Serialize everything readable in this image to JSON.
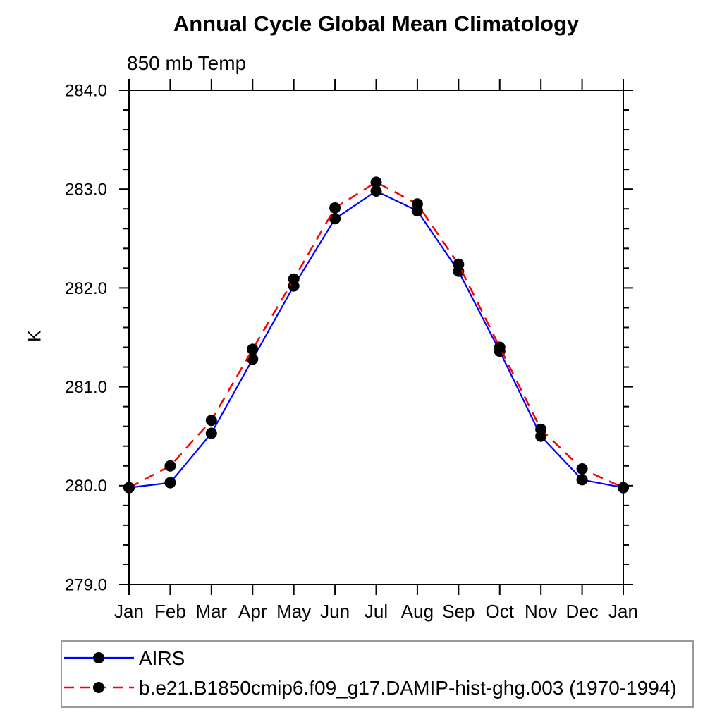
{
  "chart_data": {
    "type": "line",
    "title": "Annual Cycle Global Mean Climatology",
    "subtitle": "850 mb Temp",
    "ylabel": "K",
    "xlabel": "",
    "categories": [
      "Jan",
      "Feb",
      "Mar",
      "Apr",
      "May",
      "Jun",
      "Jul",
      "Aug",
      "Sep",
      "Oct",
      "Nov",
      "Dec",
      "Jan"
    ],
    "ylim": [
      279.0,
      284.0
    ],
    "ytick_major": 1.0,
    "ytick_minor": 0.2,
    "ytick_labels": [
      "279.0",
      "280.0",
      "281.0",
      "282.0",
      "283.0",
      "284.0"
    ],
    "grid": false,
    "legend_position": "bottom-left-box",
    "axis_color": "#000000",
    "legend_border_color": "#9a9a9a",
    "marker_color": "#000000",
    "series": [
      {
        "name": "AIRS",
        "color": "#0000ff",
        "line_style": "solid",
        "marker": "filled-circle",
        "values": [
          279.98,
          280.03,
          280.53,
          281.28,
          282.02,
          282.7,
          282.98,
          282.78,
          282.17,
          281.36,
          280.5,
          280.06,
          279.98
        ]
      },
      {
        "name": "b.e21.B1850cmip6.f09_g17.DAMIP-hist-ghg.003 (1970-1994)",
        "color": "#ff0000",
        "line_style": "dashed",
        "marker": "filled-circle",
        "values": [
          279.98,
          280.2,
          280.66,
          281.38,
          282.09,
          282.81,
          283.07,
          282.85,
          282.24,
          281.4,
          280.57,
          280.17,
          279.98
        ]
      }
    ]
  }
}
